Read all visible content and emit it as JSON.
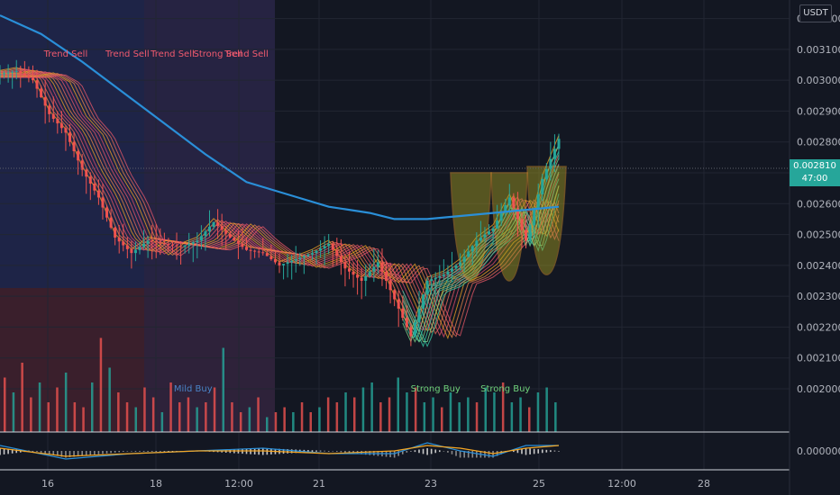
{
  "currency_label": "USDT",
  "last_price": {
    "value": "0.002810",
    "countdown": "47:00",
    "color": "#26a69a"
  },
  "colors": {
    "ma_line": "#2a8fd8",
    "bull": "#26a69a",
    "bear": "#ef5350",
    "signal_sell": "#f05a6e",
    "signal_buy": "#6fd17a",
    "cup_fill": "#a8a020"
  },
  "chart_data": [
    {
      "type": "line",
      "title": "",
      "yaxis_position": "right",
      "ylim": [
        0.00186,
        0.00326
      ],
      "y_ticks": [
        "0.003200",
        "0.003100",
        "0.003000",
        "0.002900",
        "0.002800",
        "0.002700",
        "0.002600",
        "0.002500",
        "0.002400",
        "0.002300",
        "0.002200",
        "0.002100",
        "0.002000"
      ],
      "x_ticks": [
        "16",
        "18",
        "12:00",
        "21",
        "23",
        "25",
        "12:00",
        "28"
      ],
      "series": [
        {
          "role": "close",
          "x": [
            0,
            2,
            4,
            6,
            8,
            10,
            12,
            14,
            16,
            18,
            20,
            22,
            24,
            26,
            28,
            30,
            32,
            34,
            36,
            38,
            40,
            42,
            44,
            46,
            48,
            50,
            52,
            54,
            56,
            58,
            60,
            62,
            64,
            66,
            68
          ],
          "y": [
            0.00302,
            0.00303,
            0.003,
            0.00289,
            0.00283,
            0.00271,
            0.00262,
            0.00249,
            0.00244,
            0.00248,
            0.00247,
            0.00246,
            0.00248,
            0.00254,
            0.00249,
            0.00245,
            0.00244,
            0.0024,
            0.00242,
            0.00244,
            0.00247,
            0.00239,
            0.00235,
            0.00241,
            0.00229,
            0.00217,
            0.00235,
            0.00237,
            0.00241,
            0.00248,
            0.00252,
            0.00262,
            0.00248,
            0.00268,
            0.00281
          ]
        },
        {
          "role": "moving_average",
          "x": [
            0,
            5,
            10,
            15,
            20,
            25,
            30,
            35,
            40,
            45,
            48,
            52,
            56,
            60,
            64,
            68
          ],
          "y": [
            0.00321,
            0.00315,
            0.00306,
            0.00296,
            0.00286,
            0.00276,
            0.00267,
            0.00263,
            0.00259,
            0.00257,
            0.00255,
            0.00255,
            0.00256,
            0.00257,
            0.00258,
            0.00259
          ]
        }
      ],
      "signals": [
        {
          "label": "Trend Sell",
          "x": 8,
          "kind": "sell"
        },
        {
          "label": "Trend Sell",
          "x": 15.5,
          "kind": "sell"
        },
        {
          "label": "Trend Sell",
          "x": 21,
          "kind": "sell"
        },
        {
          "label": "Strong Sell",
          "x": 26.5,
          "kind": "sell"
        },
        {
          "label": "Trend Sell",
          "x": 30,
          "kind": "sell"
        },
        {
          "label": "Mild Buy",
          "x": 23.5,
          "kind": "mid"
        },
        {
          "label": "Strong Buy",
          "x": 53,
          "kind": "buy"
        },
        {
          "label": "Strong Buy",
          "x": 61.5,
          "kind": "buy"
        }
      ]
    },
    {
      "type": "bar",
      "role": "volume",
      "x": [
        0,
        1,
        2,
        3,
        4,
        5,
        6,
        7,
        8,
        9,
        10,
        11,
        12,
        13,
        14,
        15,
        16,
        17,
        18,
        19,
        20,
        21,
        22,
        23,
        24,
        25,
        26,
        27,
        28,
        29,
        30,
        31,
        32,
        33,
        34,
        35,
        36,
        37,
        38,
        39,
        40,
        41,
        42,
        43,
        44,
        45,
        46,
        47,
        48,
        49,
        50,
        51,
        52,
        53,
        54,
        55,
        56,
        57,
        58,
        59,
        60,
        61,
        62,
        63
      ],
      "values": [
        0.55,
        0.4,
        0.7,
        0.35,
        0.5,
        0.3,
        0.45,
        0.6,
        0.3,
        0.25,
        0.5,
        0.95,
        0.65,
        0.4,
        0.3,
        0.25,
        0.45,
        0.35,
        0.2,
        0.5,
        0.3,
        0.35,
        0.25,
        0.3,
        0.45,
        0.85,
        0.3,
        0.2,
        0.25,
        0.35,
        0.15,
        0.2,
        0.25,
        0.2,
        0.3,
        0.2,
        0.25,
        0.35,
        0.3,
        0.4,
        0.35,
        0.45,
        0.5,
        0.3,
        0.35,
        0.55,
        0.4,
        0.45,
        0.3,
        0.35,
        0.25,
        0.4,
        0.3,
        0.35,
        0.3,
        0.45,
        0.4,
        0.5,
        0.3,
        0.35,
        0.25,
        0.4,
        0.45,
        0.3
      ],
      "up": [
        0,
        1,
        0,
        0,
        1,
        0,
        0,
        1,
        0,
        0,
        1,
        0,
        1,
        0,
        0,
        1,
        0,
        0,
        1,
        0,
        0,
        0,
        1,
        0,
        0,
        1,
        0,
        0,
        1,
        0,
        1,
        0,
        0,
        1,
        0,
        0,
        1,
        0,
        0,
        1,
        0,
        1,
        1,
        0,
        0,
        1,
        1,
        0,
        1,
        1,
        0,
        1,
        1,
        1,
        0,
        1,
        1,
        0,
        1,
        1,
        0,
        1,
        1,
        1
      ]
    },
    {
      "type": "line",
      "role": "oscillator",
      "y_ticks": [
        "0.000000"
      ],
      "series": [
        {
          "role": "macd",
          "x": [
            0,
            8,
            16,
            24,
            32,
            40,
            48,
            52,
            56,
            60,
            64,
            68
          ],
          "y": [
            2e-05,
            -3e-05,
            -1e-05,
            0.0,
            1e-05,
            -1e-05,
            -1e-05,
            3e-05,
            0.0,
            -2e-05,
            2e-05,
            2e-05
          ]
        },
        {
          "role": "signal",
          "x": [
            0,
            8,
            16,
            24,
            32,
            40,
            48,
            52,
            56,
            60,
            64,
            68
          ],
          "y": [
            1e-05,
            -2e-05,
            -1e-05,
            0.0,
            0.0,
            -1e-05,
            0.0,
            2e-05,
            1e-05,
            -1e-05,
            1e-05,
            2e-05
          ]
        }
      ]
    }
  ]
}
